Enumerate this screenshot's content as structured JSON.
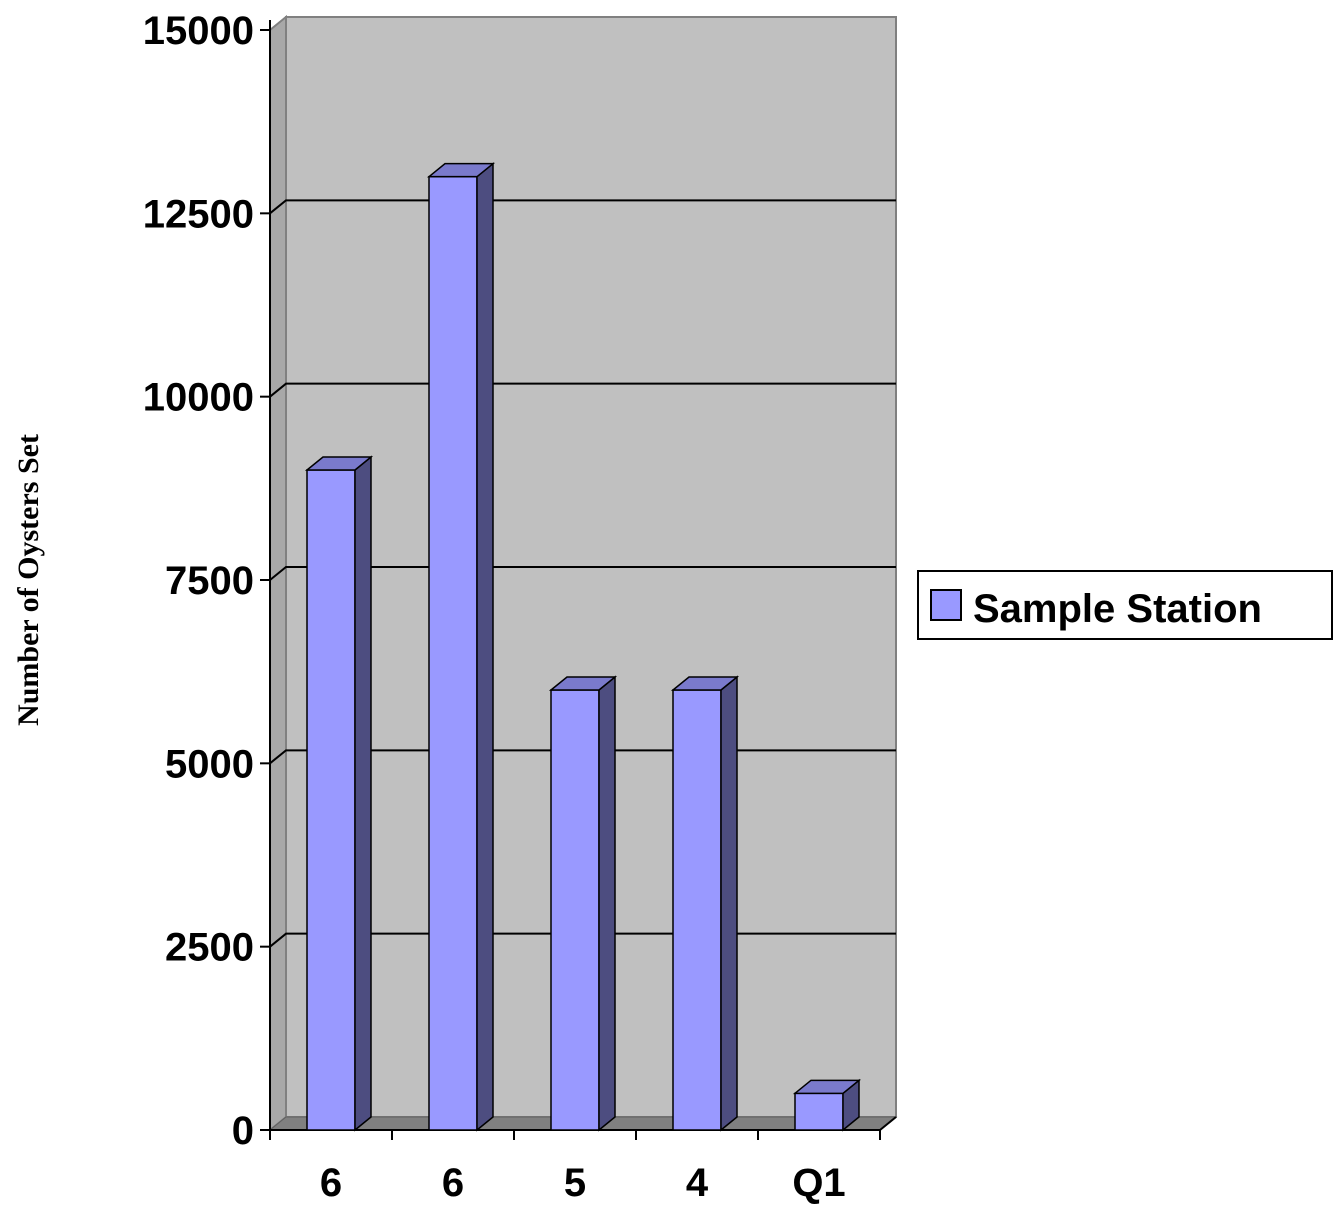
{
  "chart_data": {
    "type": "bar",
    "title": "",
    "xlabel": "",
    "ylabel": "Number of Oysters Set",
    "categories": [
      "6",
      "6",
      "5",
      "4",
      "Q1"
    ],
    "series": [
      {
        "name": "Sample Station",
        "values": [
          9000,
          13000,
          6000,
          6000,
          500
        ],
        "color": "#9999ff"
      }
    ],
    "ylim": [
      0,
      15000
    ],
    "yticks": [
      "0",
      "2500",
      "5000",
      "7500",
      "10000",
      "12500",
      "15000"
    ],
    "grid": true,
    "legend": "right",
    "style": "3d-column",
    "colors": {
      "plot_bg": "#c0c0c0",
      "bar_front": "#9999ff",
      "bar_side": "#4d4d80",
      "bar_top": "#7a7acc",
      "floor": "#808080"
    }
  }
}
